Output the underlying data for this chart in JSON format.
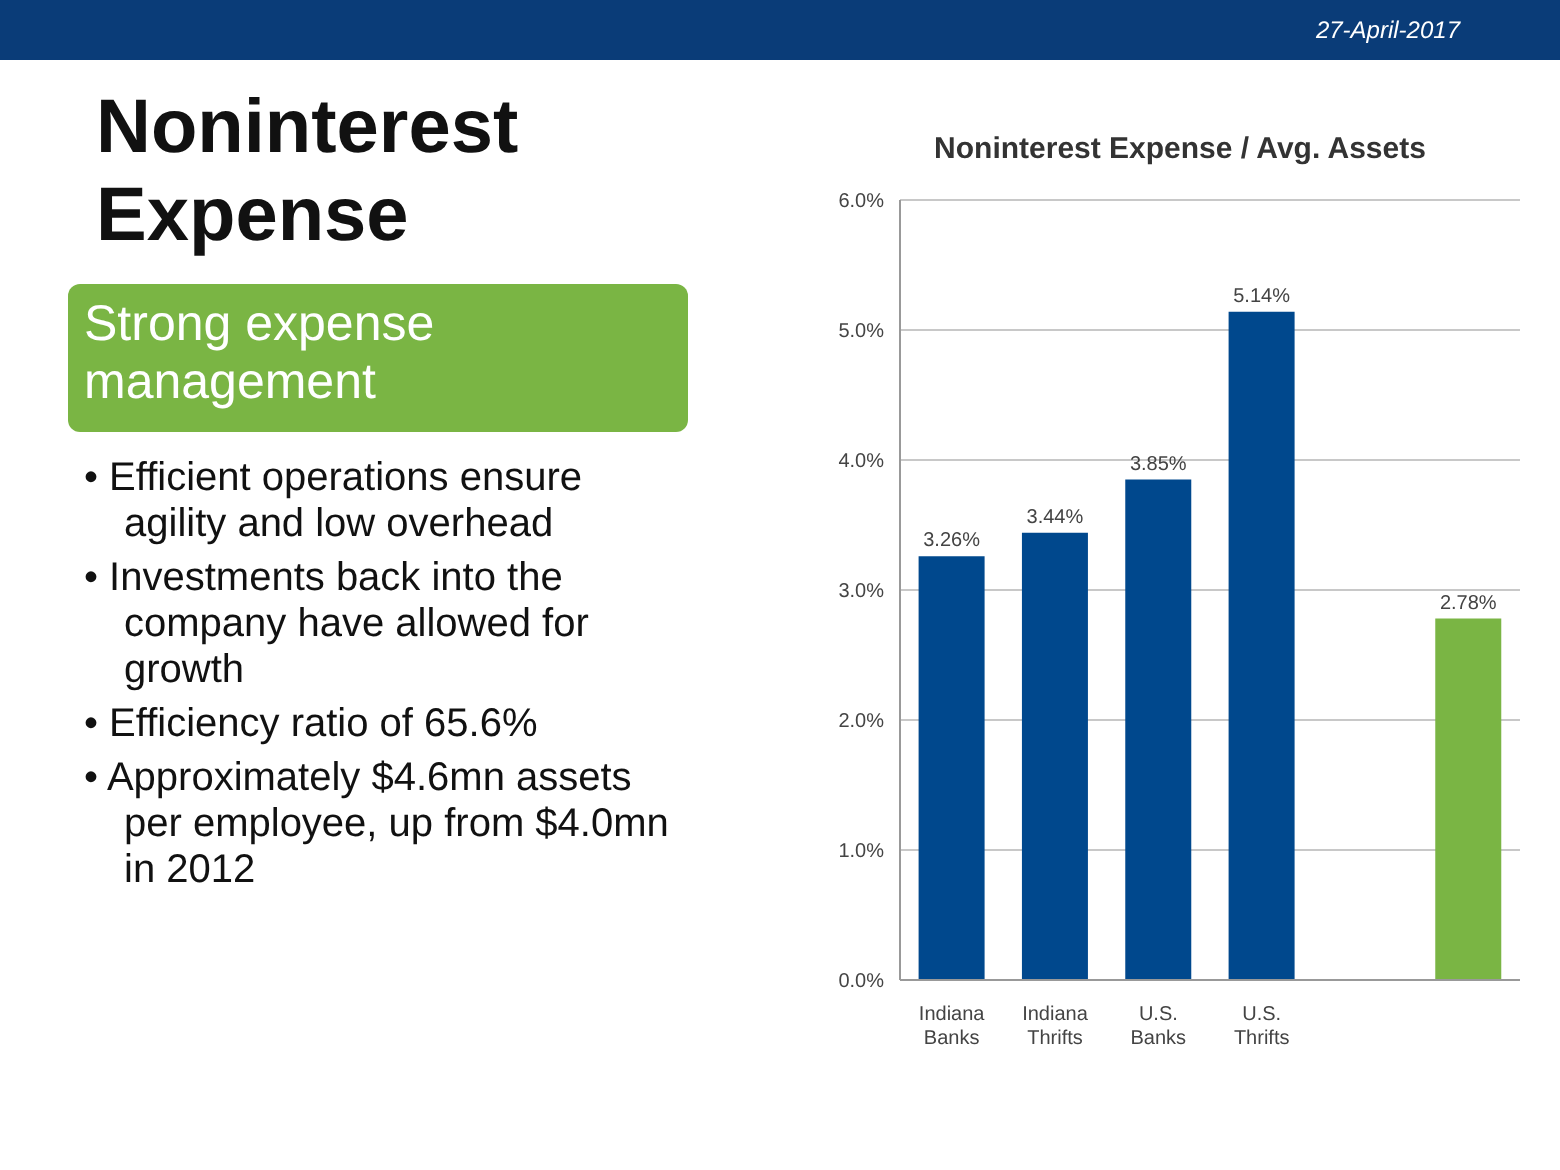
{
  "chart_data": {
    "type": "bar",
    "title": "Noninterest Expense / Avg. Assets",
    "categories": [
      "Indiana Banks",
      "Indiana Thrifts",
      "U.S. Banks",
      "U.S. Thrifts",
      null,
      null
    ],
    "values": [
      3.26,
      3.44,
      3.85,
      5.14,
      null,
      2.78
    ],
    "colors": [
      "#00488d",
      "#00488d",
      "#00488d",
      "#00488d",
      "#00488d",
      "#7ab544"
    ],
    "value_labels": [
      "3.26%",
      "3.44%",
      "3.85%",
      "5.14%",
      null,
      "2.78%"
    ],
    "ylim": [
      0,
      6
    ],
    "yticks": [
      {
        "value": 0,
        "label": "0.0%"
      },
      {
        "value": 1,
        "label": "1.0%"
      },
      {
        "value": 2,
        "label": "2.0%"
      },
      {
        "value": 3,
        "label": "3.0%"
      },
      {
        "value": 4,
        "label": "4.0%"
      },
      {
        "value": 5,
        "label": "5.0%"
      },
      {
        "value": 6,
        "label": "6.0%"
      }
    ],
    "grid": "y",
    "annotations": [
      "27-April-2017",
      "Noninterest Expense",
      "Strong expense management",
      "• Efficient operations ensure agility and low overhead",
      "• Investments back into the company have allowed for growth",
      "• Efficiency ratio of 65.6%",
      "• Approximately $4.6mn assets per employee, up from $4.0mn in 2012"
    ]
  }
}
